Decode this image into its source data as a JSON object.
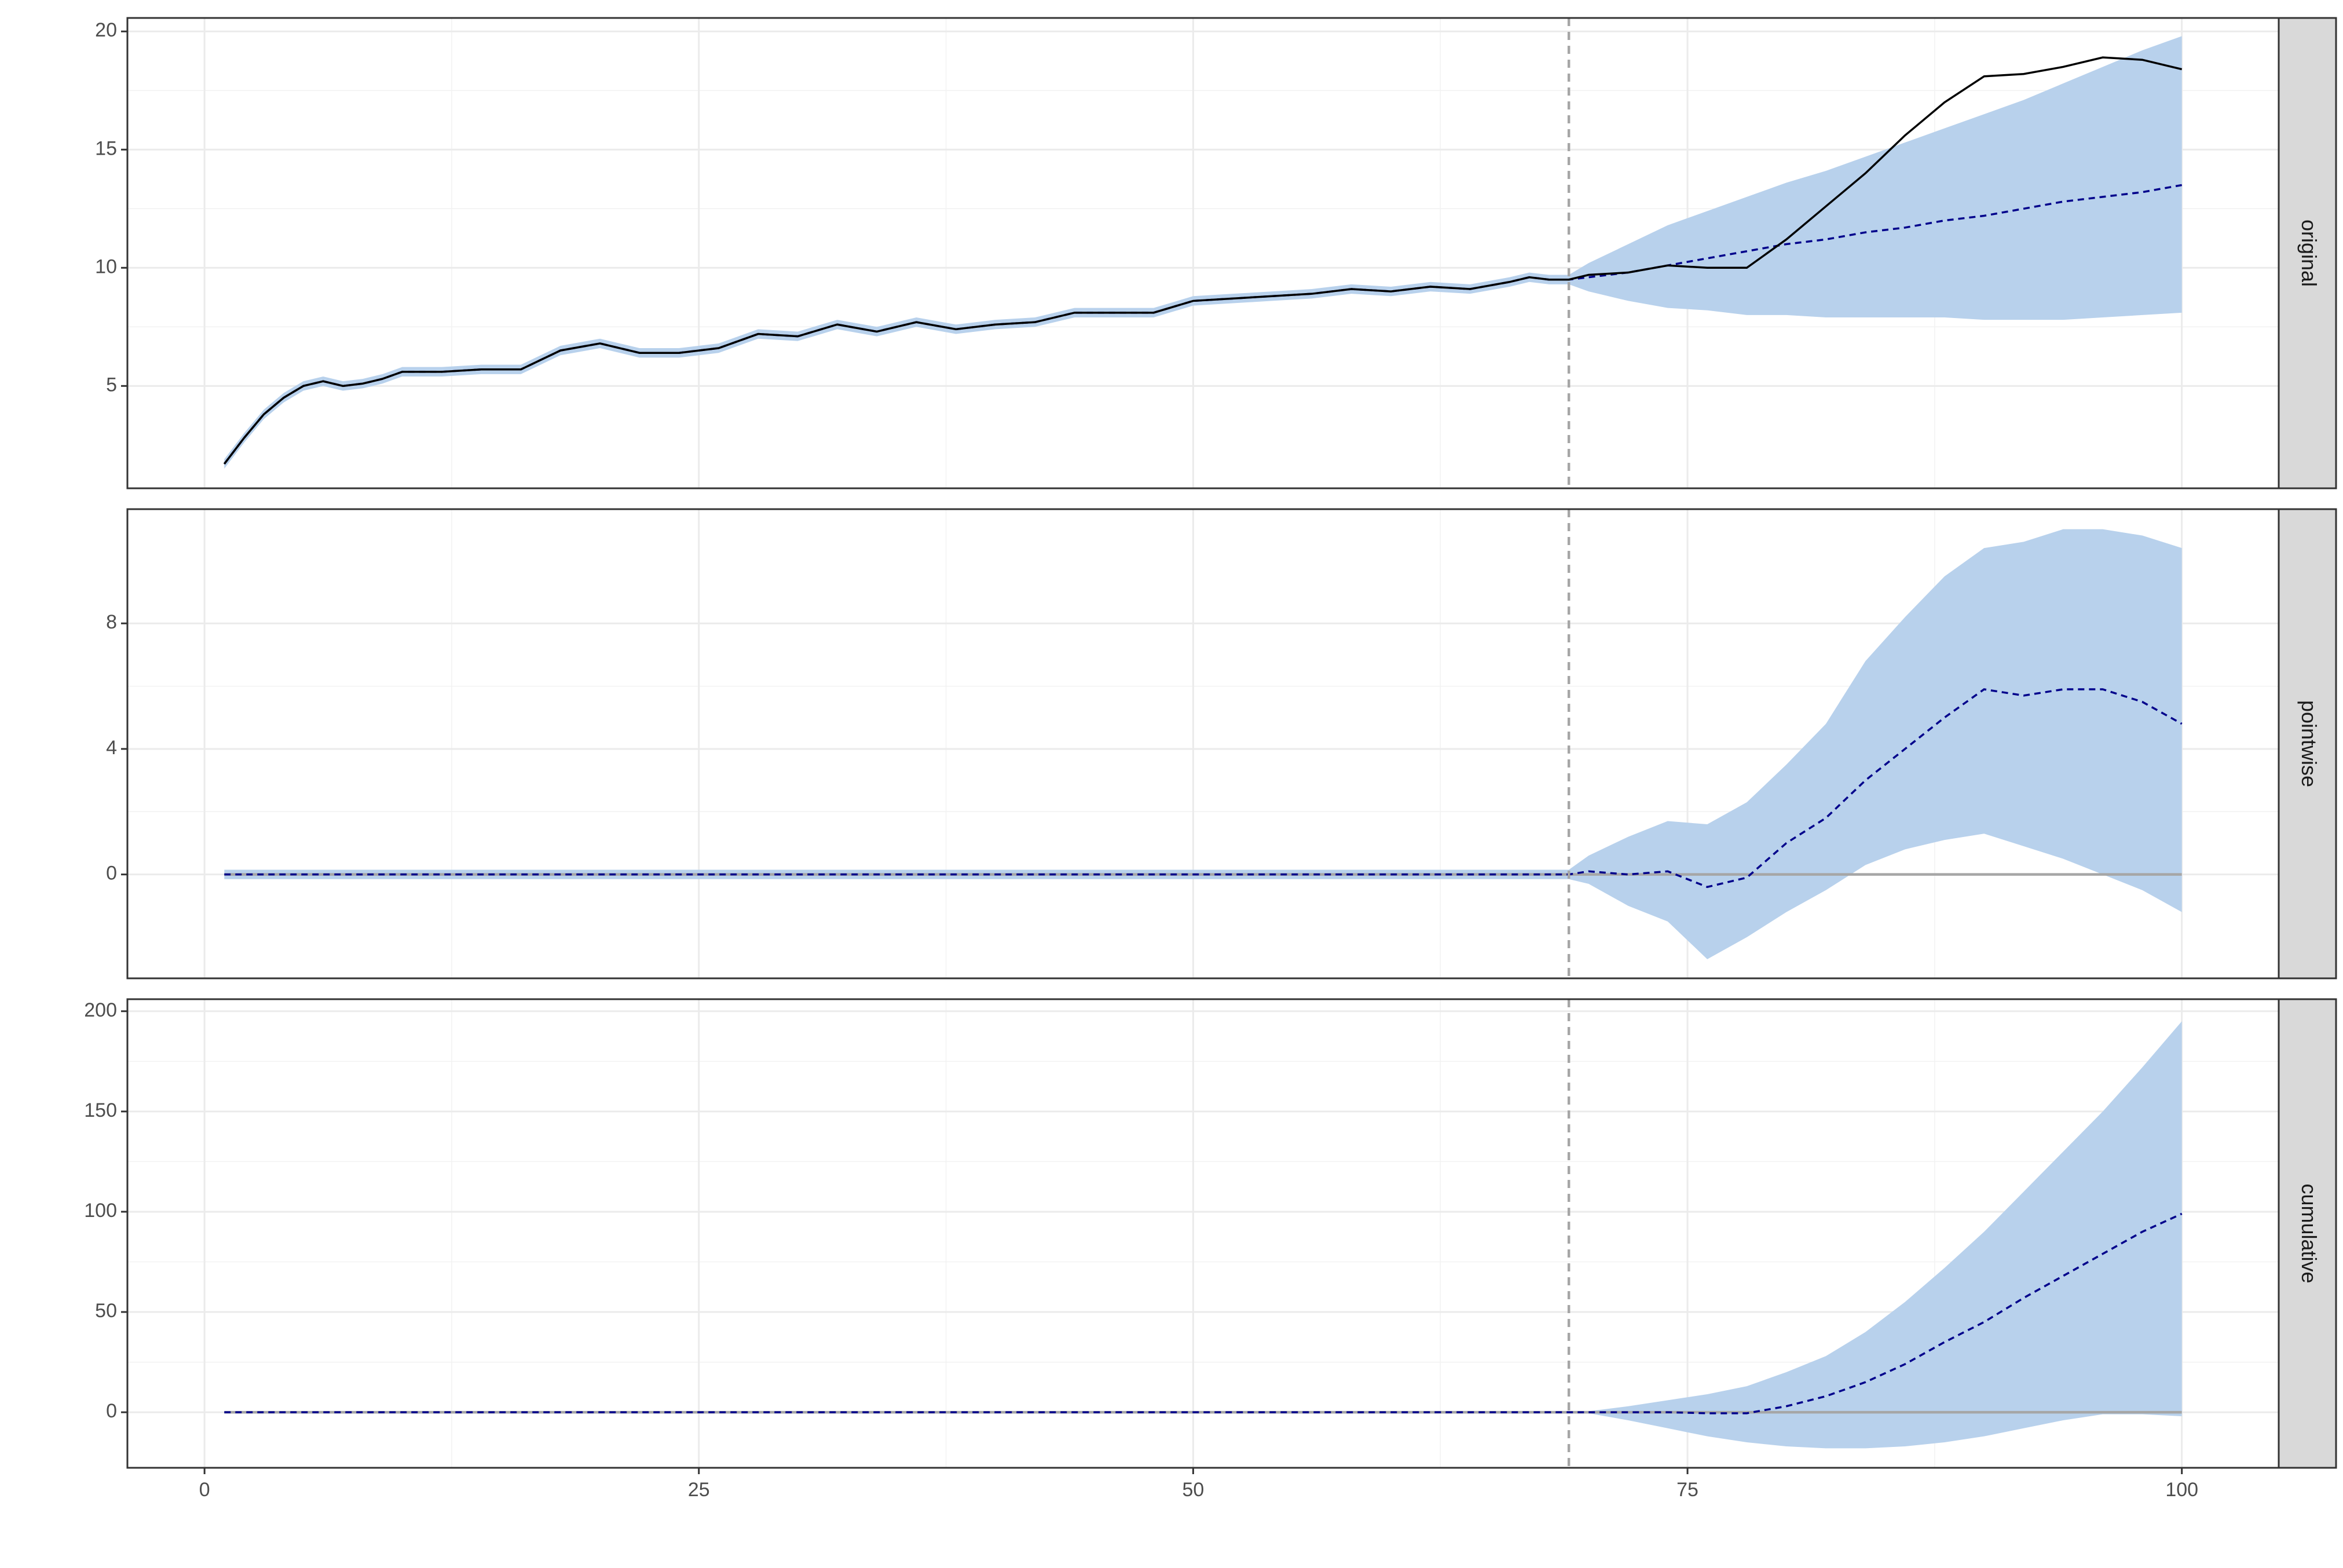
{
  "chart_data": [
    {
      "type": "line",
      "strip": "original",
      "xlim": [
        -3.9,
        104.9
      ],
      "xticks": [
        0,
        25,
        50,
        75,
        100
      ],
      "show_xtick_labels": false,
      "ylim": [
        0.67,
        20.57
      ],
      "yticks": [
        5,
        10,
        15,
        20
      ],
      "grid": true,
      "vline": 69,
      "x": [
        1,
        2,
        3,
        4,
        5,
        6,
        7,
        8,
        9,
        10,
        12,
        14,
        16,
        18,
        20,
        22,
        24,
        26,
        28,
        30,
        32,
        34,
        36,
        38,
        40,
        42,
        44,
        46,
        48,
        50,
        52,
        54,
        56,
        58,
        60,
        62,
        64,
        66,
        67,
        68,
        69,
        70,
        72,
        74,
        76,
        78,
        80,
        82,
        84,
        86,
        88,
        90,
        92,
        94,
        96,
        98,
        100
      ],
      "band": {
        "color": "#b8d1ec",
        "lower": [
          1.5,
          2.6,
          3.6,
          4.3,
          4.8,
          5.0,
          4.8,
          4.9,
          5.1,
          5.4,
          5.4,
          5.5,
          5.5,
          6.3,
          6.6,
          6.2,
          6.2,
          6.4,
          7.0,
          6.9,
          7.4,
          7.1,
          7.5,
          7.2,
          7.4,
          7.5,
          7.9,
          7.9,
          7.9,
          8.4,
          8.5,
          8.6,
          8.7,
          8.9,
          8.8,
          9.0,
          8.9,
          9.2,
          9.4,
          9.3,
          9.3,
          9.0,
          8.6,
          8.3,
          8.2,
          8.0,
          8.0,
          7.9,
          7.9,
          7.9,
          7.9,
          7.8,
          7.8,
          7.8,
          7.9,
          8.0,
          8.1
        ],
        "upper": [
          1.9,
          3.0,
          4.0,
          4.7,
          5.2,
          5.4,
          5.2,
          5.3,
          5.5,
          5.8,
          5.8,
          5.9,
          5.9,
          6.7,
          7.0,
          6.6,
          6.6,
          6.8,
          7.4,
          7.3,
          7.8,
          7.5,
          7.9,
          7.6,
          7.8,
          7.9,
          8.3,
          8.3,
          8.3,
          8.8,
          8.9,
          9.0,
          9.1,
          9.3,
          9.2,
          9.4,
          9.3,
          9.6,
          9.8,
          9.7,
          9.7,
          10.2,
          11.0,
          11.8,
          12.4,
          13.0,
          13.6,
          14.1,
          14.7,
          15.3,
          15.9,
          16.5,
          17.1,
          17.8,
          18.5,
          19.2,
          19.8
        ]
      },
      "mean": {
        "color": "#00008b",
        "values": [
          1.7,
          2.8,
          3.8,
          4.5,
          5.0,
          5.2,
          5.0,
          5.1,
          5.3,
          5.6,
          5.6,
          5.7,
          5.7,
          6.5,
          6.8,
          6.4,
          6.4,
          6.6,
          7.2,
          7.1,
          7.6,
          7.3,
          7.7,
          7.4,
          7.6,
          7.7,
          8.1,
          8.1,
          8.1,
          8.6,
          8.7,
          8.8,
          8.9,
          9.1,
          9.0,
          9.2,
          9.1,
          9.4,
          9.6,
          9.5,
          9.5,
          9.6,
          9.8,
          10.1,
          10.4,
          10.7,
          11.0,
          11.2,
          11.5,
          11.7,
          12.0,
          12.2,
          12.5,
          12.8,
          13.0,
          13.2,
          13.5
        ]
      },
      "actual": {
        "color": "#000000",
        "values": [
          1.7,
          2.8,
          3.8,
          4.5,
          5.0,
          5.2,
          5.0,
          5.1,
          5.3,
          5.6,
          5.6,
          5.7,
          5.7,
          6.5,
          6.8,
          6.4,
          6.4,
          6.6,
          7.2,
          7.1,
          7.6,
          7.3,
          7.7,
          7.4,
          7.6,
          7.7,
          8.1,
          8.1,
          8.1,
          8.6,
          8.7,
          8.8,
          8.9,
          9.1,
          9.0,
          9.2,
          9.1,
          9.4,
          9.6,
          9.5,
          9.5,
          9.7,
          9.8,
          10.1,
          10.0,
          10.0,
          11.2,
          12.6,
          14.0,
          15.6,
          17.0,
          18.1,
          18.2,
          18.5,
          18.9,
          18.8,
          18.4
        ]
      }
    },
    {
      "type": "line",
      "strip": "pointwise",
      "xlim": [
        -3.9,
        104.9
      ],
      "xticks": [
        0,
        25,
        50,
        75,
        100
      ],
      "show_xtick_labels": false,
      "ylim": [
        -3.31,
        11.64
      ],
      "yticks": [
        0,
        4,
        8
      ],
      "grid": true,
      "vline": 69,
      "hline": 0,
      "x": [
        1,
        2,
        3,
        4,
        5,
        6,
        7,
        8,
        9,
        10,
        12,
        14,
        16,
        18,
        20,
        22,
        24,
        26,
        28,
        30,
        32,
        34,
        36,
        38,
        40,
        42,
        44,
        46,
        48,
        50,
        52,
        54,
        56,
        58,
        60,
        62,
        64,
        66,
        67,
        68,
        69,
        70,
        72,
        74,
        76,
        78,
        80,
        82,
        84,
        86,
        88,
        90,
        92,
        94,
        96,
        98,
        100
      ],
      "band": {
        "color": "#b8d1ec",
        "lower": [
          -0.15,
          -0.15,
          -0.15,
          -0.15,
          -0.15,
          -0.15,
          -0.15,
          -0.15,
          -0.15,
          -0.15,
          -0.15,
          -0.15,
          -0.15,
          -0.15,
          -0.15,
          -0.15,
          -0.15,
          -0.15,
          -0.15,
          -0.15,
          -0.15,
          -0.15,
          -0.15,
          -0.15,
          -0.15,
          -0.15,
          -0.15,
          -0.15,
          -0.15,
          -0.15,
          -0.15,
          -0.15,
          -0.15,
          -0.15,
          -0.15,
          -0.15,
          -0.15,
          -0.15,
          -0.15,
          -0.15,
          -0.15,
          -0.3,
          -1.0,
          -1.5,
          -2.7,
          -2.0,
          -1.2,
          -0.5,
          0.3,
          0.8,
          1.1,
          1.3,
          0.9,
          0.5,
          0.0,
          -0.5,
          -1.2
        ],
        "upper": [
          0.15,
          0.15,
          0.15,
          0.15,
          0.15,
          0.15,
          0.15,
          0.15,
          0.15,
          0.15,
          0.15,
          0.15,
          0.15,
          0.15,
          0.15,
          0.15,
          0.15,
          0.15,
          0.15,
          0.15,
          0.15,
          0.15,
          0.15,
          0.15,
          0.15,
          0.15,
          0.15,
          0.15,
          0.15,
          0.15,
          0.15,
          0.15,
          0.15,
          0.15,
          0.15,
          0.15,
          0.15,
          0.15,
          0.15,
          0.15,
          0.15,
          0.6,
          1.2,
          1.7,
          1.6,
          2.3,
          3.5,
          4.8,
          6.8,
          8.2,
          9.5,
          10.4,
          10.6,
          11.0,
          11.0,
          10.8,
          10.4
        ]
      },
      "mean": {
        "color": "#00008b",
        "values": [
          0,
          0,
          0,
          0,
          0,
          0,
          0,
          0,
          0,
          0,
          0,
          0,
          0,
          0,
          0,
          0,
          0,
          0,
          0,
          0,
          0,
          0,
          0,
          0,
          0,
          0,
          0,
          0,
          0,
          0,
          0,
          0,
          0,
          0,
          0,
          0,
          0,
          0,
          0,
          0,
          0,
          0.1,
          0.0,
          0.1,
          -0.4,
          -0.1,
          1.0,
          1.8,
          3.0,
          4.0,
          5.0,
          5.9,
          5.7,
          5.9,
          5.9,
          5.5,
          4.8
        ]
      }
    },
    {
      "type": "line",
      "strip": "cumulative",
      "xlim": [
        -3.9,
        104.9
      ],
      "xticks": [
        0,
        25,
        50,
        75,
        100
      ],
      "show_xtick_labels": true,
      "ylim": [
        -27.7,
        206
      ],
      "yticks": [
        0,
        50,
        100,
        150,
        200
      ],
      "grid": true,
      "vline": 69,
      "hline": 0,
      "x": [
        1,
        2,
        3,
        4,
        5,
        6,
        7,
        8,
        9,
        10,
        12,
        14,
        16,
        18,
        20,
        22,
        24,
        26,
        28,
        30,
        32,
        34,
        36,
        38,
        40,
        42,
        44,
        46,
        48,
        50,
        52,
        54,
        56,
        58,
        60,
        62,
        64,
        66,
        67,
        68,
        69,
        70,
        72,
        74,
        76,
        78,
        80,
        82,
        84,
        86,
        88,
        90,
        92,
        94,
        96,
        98,
        100
      ],
      "band": {
        "color": "#b8d1ec",
        "lower": [
          0,
          0,
          0,
          0,
          0,
          0,
          0,
          0,
          0,
          0,
          0,
          0,
          0,
          0,
          0,
          0,
          0,
          0,
          0,
          0,
          0,
          0,
          0,
          0,
          0,
          0,
          0,
          0,
          0,
          0,
          0,
          0,
          0,
          0,
          0,
          0,
          0,
          0,
          0,
          0,
          0,
          -0.5,
          -4,
          -8,
          -12,
          -15,
          -17,
          -18,
          -18,
          -17,
          -15,
          -12,
          -8,
          -4,
          -1,
          -1,
          -2
        ],
        "upper": [
          0,
          0,
          0,
          0,
          0,
          0,
          0,
          0,
          0,
          0,
          0,
          0,
          0,
          0,
          0,
          0,
          0,
          0,
          0,
          0,
          0,
          0,
          0,
          0,
          0,
          0,
          0,
          0,
          0,
          0,
          0,
          0,
          0,
          0,
          0,
          0,
          0,
          0,
          0,
          0,
          0,
          0.5,
          3,
          6,
          9,
          13,
          20,
          28,
          40,
          55,
          72,
          90,
          110,
          130,
          150,
          172,
          195
        ]
      },
      "mean": {
        "color": "#00008b",
        "values": [
          0,
          0,
          0,
          0,
          0,
          0,
          0,
          0,
          0,
          0,
          0,
          0,
          0,
          0,
          0,
          0,
          0,
          0,
          0,
          0,
          0,
          0,
          0,
          0,
          0,
          0,
          0,
          0,
          0,
          0,
          0,
          0,
          0,
          0,
          0,
          0,
          0,
          0,
          0,
          0,
          0,
          0,
          0,
          0,
          -0.5,
          -0.5,
          3,
          8,
          15,
          24,
          35,
          45,
          57,
          68,
          79,
          90,
          99
        ]
      }
    }
  ]
}
